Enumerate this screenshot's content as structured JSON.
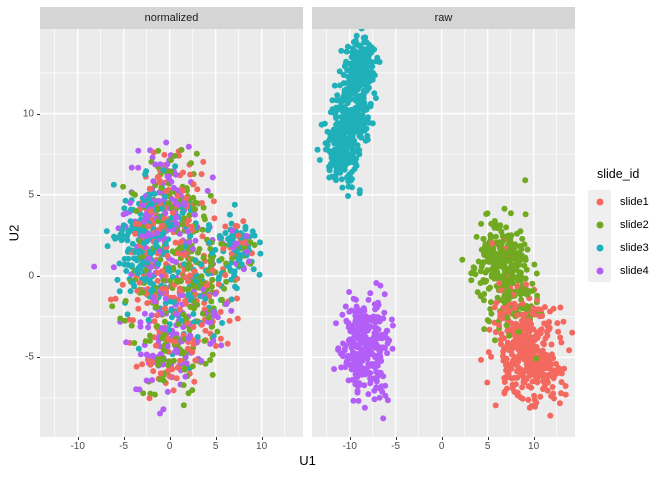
{
  "chart_data": {
    "type": "scatter",
    "title": "",
    "xlabel": "U1",
    "ylabel": "U2",
    "xlim": [
      -14.1,
      14.5
    ],
    "ylim": [
      -9.9,
      15.2
    ],
    "x_ticks": [
      -10,
      -5,
      0,
      5,
      10
    ],
    "y_ticks": [
      10,
      5,
      0,
      -5
    ],
    "x_minor_ticks": [
      -12.5,
      -7.5,
      -2.5,
      2.5,
      7.5,
      12.5
    ],
    "y_minor_ticks": [
      -7.5,
      -2.5,
      2.5,
      7.5,
      12.5
    ],
    "grid": "on",
    "panel_bg": "#ebebeb",
    "grid_color": "#ffffff",
    "strip_bg": "#d5d5d5",
    "legend": {
      "title": "slide_id",
      "position": "right",
      "items": [
        {
          "label": "slide1",
          "color": "#f4695f"
        },
        {
          "label": "slide2",
          "color": "#71a921"
        },
        {
          "label": "slide3",
          "color": "#1fb0b9"
        },
        {
          "label": "slide4",
          "color": "#b25ef7"
        }
      ]
    },
    "series": [
      {
        "name": "slide1",
        "color": "#f4695f"
      },
      {
        "name": "slide2",
        "color": "#71a921"
      },
      {
        "name": "slide3",
        "color": "#1fb0b9"
      },
      {
        "name": "slide4",
        "color": "#b25ef7"
      }
    ],
    "point_radius_px": 3,
    "facets": [
      {
        "label": "normalized",
        "description": "All four slides fully intermixed in one large irregular blob around (0,0) spanning U1 -6.5..5.5 and U2 -8..7.5, plus a teal-dominated lobe near (7.5,1.8)",
        "clusters": [
          {
            "series": "slide1",
            "cx": 0.0,
            "cy": 4.8,
            "sx": 2.0,
            "sy": 1.4,
            "n": 70
          },
          {
            "series": "slide1",
            "cx": -0.5,
            "cy": 1.0,
            "sx": 2.6,
            "sy": 2.2,
            "n": 110
          },
          {
            "series": "slide1",
            "cx": 0.0,
            "cy": -4.0,
            "sx": 2.0,
            "sy": 1.6,
            "n": 65
          },
          {
            "series": "slide1",
            "cx": 7.3,
            "cy": 1.5,
            "sx": 1.2,
            "sy": 1.0,
            "n": 18
          },
          {
            "series": "slide1",
            "cx": 4.0,
            "cy": -1.5,
            "sx": 1.5,
            "sy": 1.5,
            "n": 28
          },
          {
            "series": "slide2",
            "cx": 0.5,
            "cy": 4.6,
            "sx": 2.0,
            "sy": 1.4,
            "n": 55
          },
          {
            "series": "slide2",
            "cx": -0.5,
            "cy": 0.8,
            "sx": 2.7,
            "sy": 2.3,
            "n": 100
          },
          {
            "series": "slide2",
            "cx": 3.5,
            "cy": -0.5,
            "sx": 1.6,
            "sy": 1.8,
            "n": 60
          },
          {
            "series": "slide2",
            "cx": 0.2,
            "cy": -4.5,
            "sx": 2.0,
            "sy": 1.5,
            "n": 70
          },
          {
            "series": "slide2",
            "cx": 7.5,
            "cy": 1.2,
            "sx": 1.2,
            "sy": 0.9,
            "n": 18
          },
          {
            "series": "slide3",
            "cx": -3.2,
            "cy": 1.5,
            "sx": 1.6,
            "sy": 1.9,
            "n": 120
          },
          {
            "series": "slide3",
            "cx": -1.5,
            "cy": 4.2,
            "sx": 1.8,
            "sy": 1.2,
            "n": 40
          },
          {
            "series": "slide3",
            "cx": 0.5,
            "cy": 1.0,
            "sx": 2.5,
            "sy": 2.2,
            "n": 60
          },
          {
            "series": "slide3",
            "cx": 2.0,
            "cy": -2.0,
            "sx": 2.0,
            "sy": 1.5,
            "n": 35
          },
          {
            "series": "slide3",
            "cx": 7.6,
            "cy": 1.8,
            "sx": 1.1,
            "sy": 0.9,
            "n": 55
          },
          {
            "series": "slide3",
            "cx": 5.3,
            "cy": 0.3,
            "sx": 1.0,
            "sy": 1.0,
            "n": 15
          },
          {
            "series": "slide4",
            "cx": -0.3,
            "cy": 5.0,
            "sx": 1.9,
            "sy": 1.4,
            "n": 75
          },
          {
            "series": "slide4",
            "cx": -0.8,
            "cy": 1.2,
            "sx": 2.5,
            "sy": 2.2,
            "n": 95
          },
          {
            "series": "slide4",
            "cx": 0.0,
            "cy": -4.5,
            "sx": 1.9,
            "sy": 1.6,
            "n": 90
          },
          {
            "series": "slide4",
            "cx": 7.2,
            "cy": 2.0,
            "sx": 1.1,
            "sy": 0.9,
            "n": 15
          },
          {
            "series": "slide4",
            "cx": 4.3,
            "cy": -2.3,
            "sx": 1.3,
            "sy": 1.2,
            "n": 15
          }
        ]
      },
      {
        "label": "raw",
        "description": "Four well-separated clusters: teal slide3 elongated blob top-left around (-9.5,10.5); purple slide4 blob around (-8,-4.5); green slide2 blob around (7,0.5); red slide1 blob bottom-right around (9.5,-4.8) overlapping green near (8,-2)",
        "clusters": [
          {
            "series": "slide3",
            "cx": -9.2,
            "cy": 11.8,
            "sx": 0.9,
            "sy": 1.3,
            "n": 210
          },
          {
            "series": "slide3",
            "cx": -10.3,
            "cy": 8.6,
            "sx": 1.0,
            "sy": 1.4,
            "n": 200
          },
          {
            "series": "slide3",
            "cx": -11.2,
            "cy": 6.8,
            "sx": 0.8,
            "sy": 0.9,
            "n": 60
          },
          {
            "series": "slide3",
            "cx": -8.4,
            "cy": 13.3,
            "sx": 0.6,
            "sy": 0.7,
            "n": 60
          },
          {
            "series": "slide4",
            "cx": -8.2,
            "cy": -4.6,
            "sx": 1.3,
            "sy": 1.4,
            "n": 260
          },
          {
            "series": "slide4",
            "cx": -8.8,
            "cy": -2.8,
            "sx": 0.9,
            "sy": 0.7,
            "n": 50
          },
          {
            "series": "slide2",
            "cx": 7.0,
            "cy": 0.5,
            "sx": 1.5,
            "sy": 1.5,
            "n": 240
          },
          {
            "series": "slide2",
            "cx": 5.8,
            "cy": 1.8,
            "sx": 1.0,
            "sy": 1.0,
            "n": 40
          },
          {
            "series": "slide2",
            "cx": 8.6,
            "cy": -2.2,
            "sx": 1.0,
            "sy": 0.9,
            "n": 35
          },
          {
            "series": "slide2",
            "cx": 9.6,
            "cy": -4.4,
            "sx": 1.1,
            "sy": 0.9,
            "n": 8
          },
          {
            "series": "slide1",
            "cx": 9.2,
            "cy": -4.6,
            "sx": 1.7,
            "sy": 1.5,
            "n": 280
          },
          {
            "series": "slide1",
            "cx": 11.0,
            "cy": -6.2,
            "sx": 1.2,
            "sy": 0.9,
            "n": 60
          },
          {
            "series": "slide1",
            "cx": 7.2,
            "cy": -2.4,
            "sx": 1.0,
            "sy": 0.8,
            "n": 30
          },
          {
            "series": "slide1",
            "cx": 7.2,
            "cy": 0.6,
            "sx": 1.2,
            "sy": 1.2,
            "n": 10
          }
        ]
      }
    ]
  }
}
